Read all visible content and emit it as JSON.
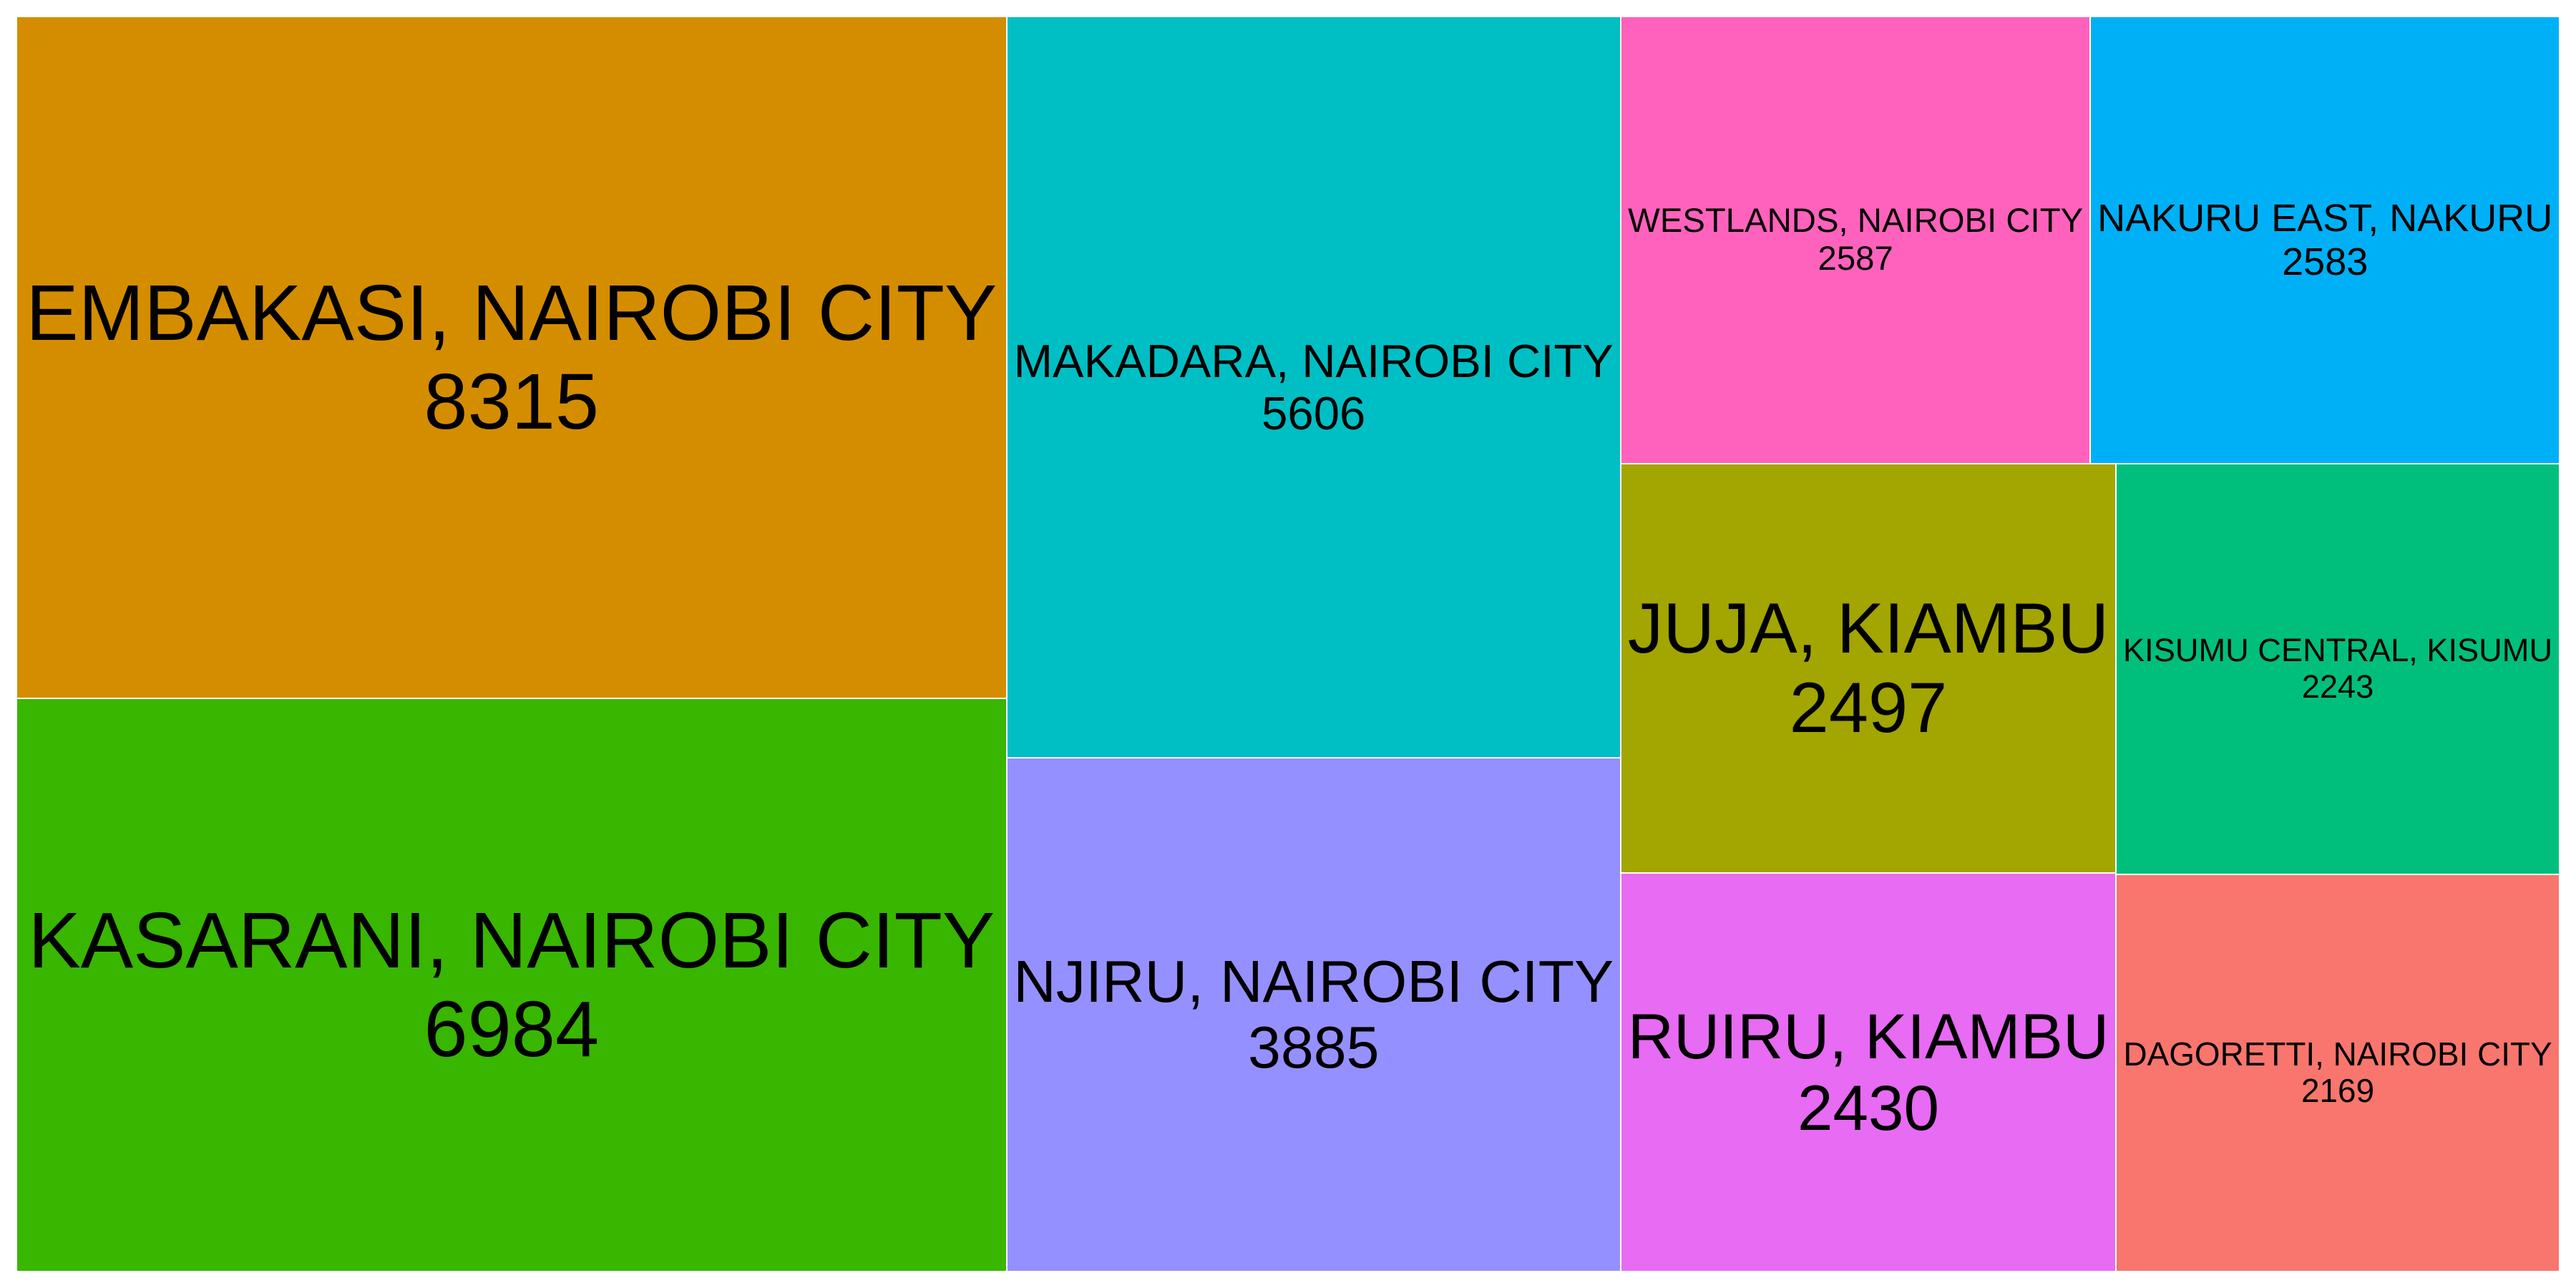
{
  "chart_data": {
    "type": "treemap",
    "title": "",
    "tiles": [
      {
        "name": "EMBAKASI, NAIROBI CITY",
        "value": 8315,
        "color": "#D58D00"
      },
      {
        "name": "KASARANI, NAIROBI CITY",
        "value": 6984,
        "color": "#39B600"
      },
      {
        "name": "MAKADARA, NAIROBI CITY",
        "value": 5606,
        "color": "#00BFC4"
      },
      {
        "name": "NJIRU, NAIROBI CITY",
        "value": 3885,
        "color": "#9590FF"
      },
      {
        "name": "WESTLANDS, NAIROBI CITY",
        "value": 2587,
        "color": "#FF62BC"
      },
      {
        "name": "NAKURU EAST, NAKURU",
        "value": 2583,
        "color": "#00B0F6"
      },
      {
        "name": "JUJA, KIAMBU",
        "value": 2497,
        "color": "#A3A500"
      },
      {
        "name": "RUIRU, KIAMBU",
        "value": 2430,
        "color": "#E76BF3"
      },
      {
        "name": "KISUMU CENTRAL, KISUMU",
        "value": 2243,
        "color": "#00BF7D"
      },
      {
        "name": "DAGORETTI, NAIROBI CITY",
        "value": 2169,
        "color": "#F8766D"
      }
    ]
  }
}
